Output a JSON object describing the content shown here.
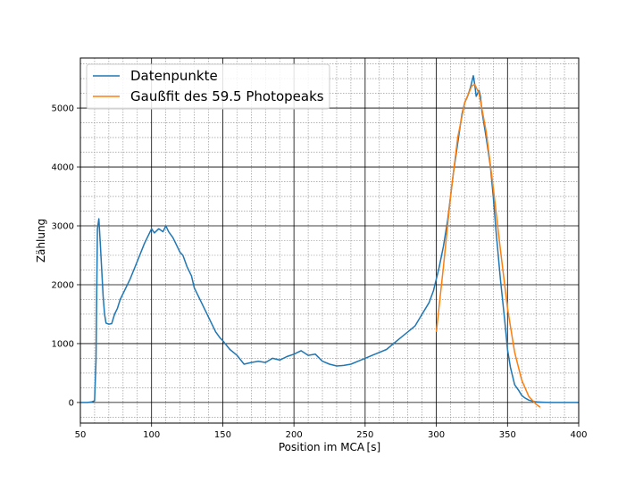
{
  "chart_data": {
    "type": "line",
    "xlabel": "Position im MCA [s]",
    "ylabel": "Zählung",
    "xlim": [
      50,
      400
    ],
    "ylim": [
      -350,
      5850
    ],
    "x_ticks": [
      50,
      100,
      150,
      200,
      250,
      300,
      350,
      400
    ],
    "y_ticks": [
      0,
      1000,
      2000,
      3000,
      4000,
      5000
    ],
    "grid": {
      "major": true,
      "minor": true,
      "x_minor_step": 10,
      "y_minor_step": 250
    },
    "legend_position": "top-left",
    "series": [
      {
        "name": "Datenpunkte",
        "color": "#1f77b4",
        "x": [
          50,
          55,
          58,
          60,
          61,
          62,
          63,
          64,
          65,
          66,
          67,
          68,
          70,
          72,
          74,
          76,
          78,
          80,
          85,
          90,
          95,
          98,
          100,
          102,
          105,
          108,
          110,
          112,
          115,
          118,
          120,
          122,
          125,
          128,
          130,
          132,
          135,
          138,
          140,
          142,
          145,
          148,
          150,
          155,
          160,
          165,
          170,
          175,
          180,
          185,
          190,
          195,
          200,
          205,
          210,
          215,
          220,
          225,
          230,
          235,
          240,
          245,
          250,
          255,
          260,
          265,
          270,
          275,
          280,
          285,
          290,
          295,
          298,
          300,
          302,
          305,
          308,
          310,
          312,
          315,
          318,
          320,
          322,
          324,
          326,
          327,
          328,
          330,
          331,
          332,
          335,
          338,
          340,
          342,
          345,
          348,
          350,
          352,
          355,
          358,
          360,
          362,
          365,
          368,
          370,
          375,
          380,
          385,
          390,
          395,
          400
        ],
        "y": [
          0,
          0,
          10,
          30,
          700,
          2950,
          3120,
          2700,
          2250,
          1800,
          1500,
          1350,
          1330,
          1340,
          1500,
          1600,
          1750,
          1850,
          2100,
          2400,
          2700,
          2850,
          2950,
          2880,
          2950,
          2900,
          3000,
          2900,
          2800,
          2650,
          2550,
          2500,
          2300,
          2150,
          1950,
          1850,
          1700,
          1550,
          1450,
          1350,
          1200,
          1100,
          1050,
          900,
          800,
          650,
          680,
          700,
          680,
          750,
          720,
          780,
          820,
          880,
          800,
          820,
          700,
          650,
          620,
          630,
          650,
          700,
          750,
          800,
          850,
          900,
          1000,
          1100,
          1200,
          1300,
          1500,
          1700,
          1900,
          2100,
          2300,
          2650,
          3100,
          3500,
          3900,
          4400,
          4900,
          5100,
          5200,
          5350,
          5550,
          5400,
          5200,
          5300,
          5200,
          4950,
          4500,
          4000,
          3500,
          2900,
          2100,
          1400,
          900,
          600,
          300,
          200,
          120,
          80,
          40,
          20,
          10,
          5,
          0,
          0,
          0,
          0,
          0
        ]
      },
      {
        "name": "Gaußfit des 59.5 Photopeaks",
        "color": "#ff7f0e",
        "x": [
          300,
          305,
          310,
          315,
          320,
          325,
          327,
          330,
          335,
          340,
          345,
          350,
          355,
          360,
          365,
          370,
          373
        ],
        "y": [
          1200,
          2300,
          3500,
          4500,
          5100,
          5380,
          5400,
          5250,
          4600,
          3650,
          2600,
          1600,
          850,
          380,
          100,
          -30,
          -80
        ]
      }
    ]
  }
}
